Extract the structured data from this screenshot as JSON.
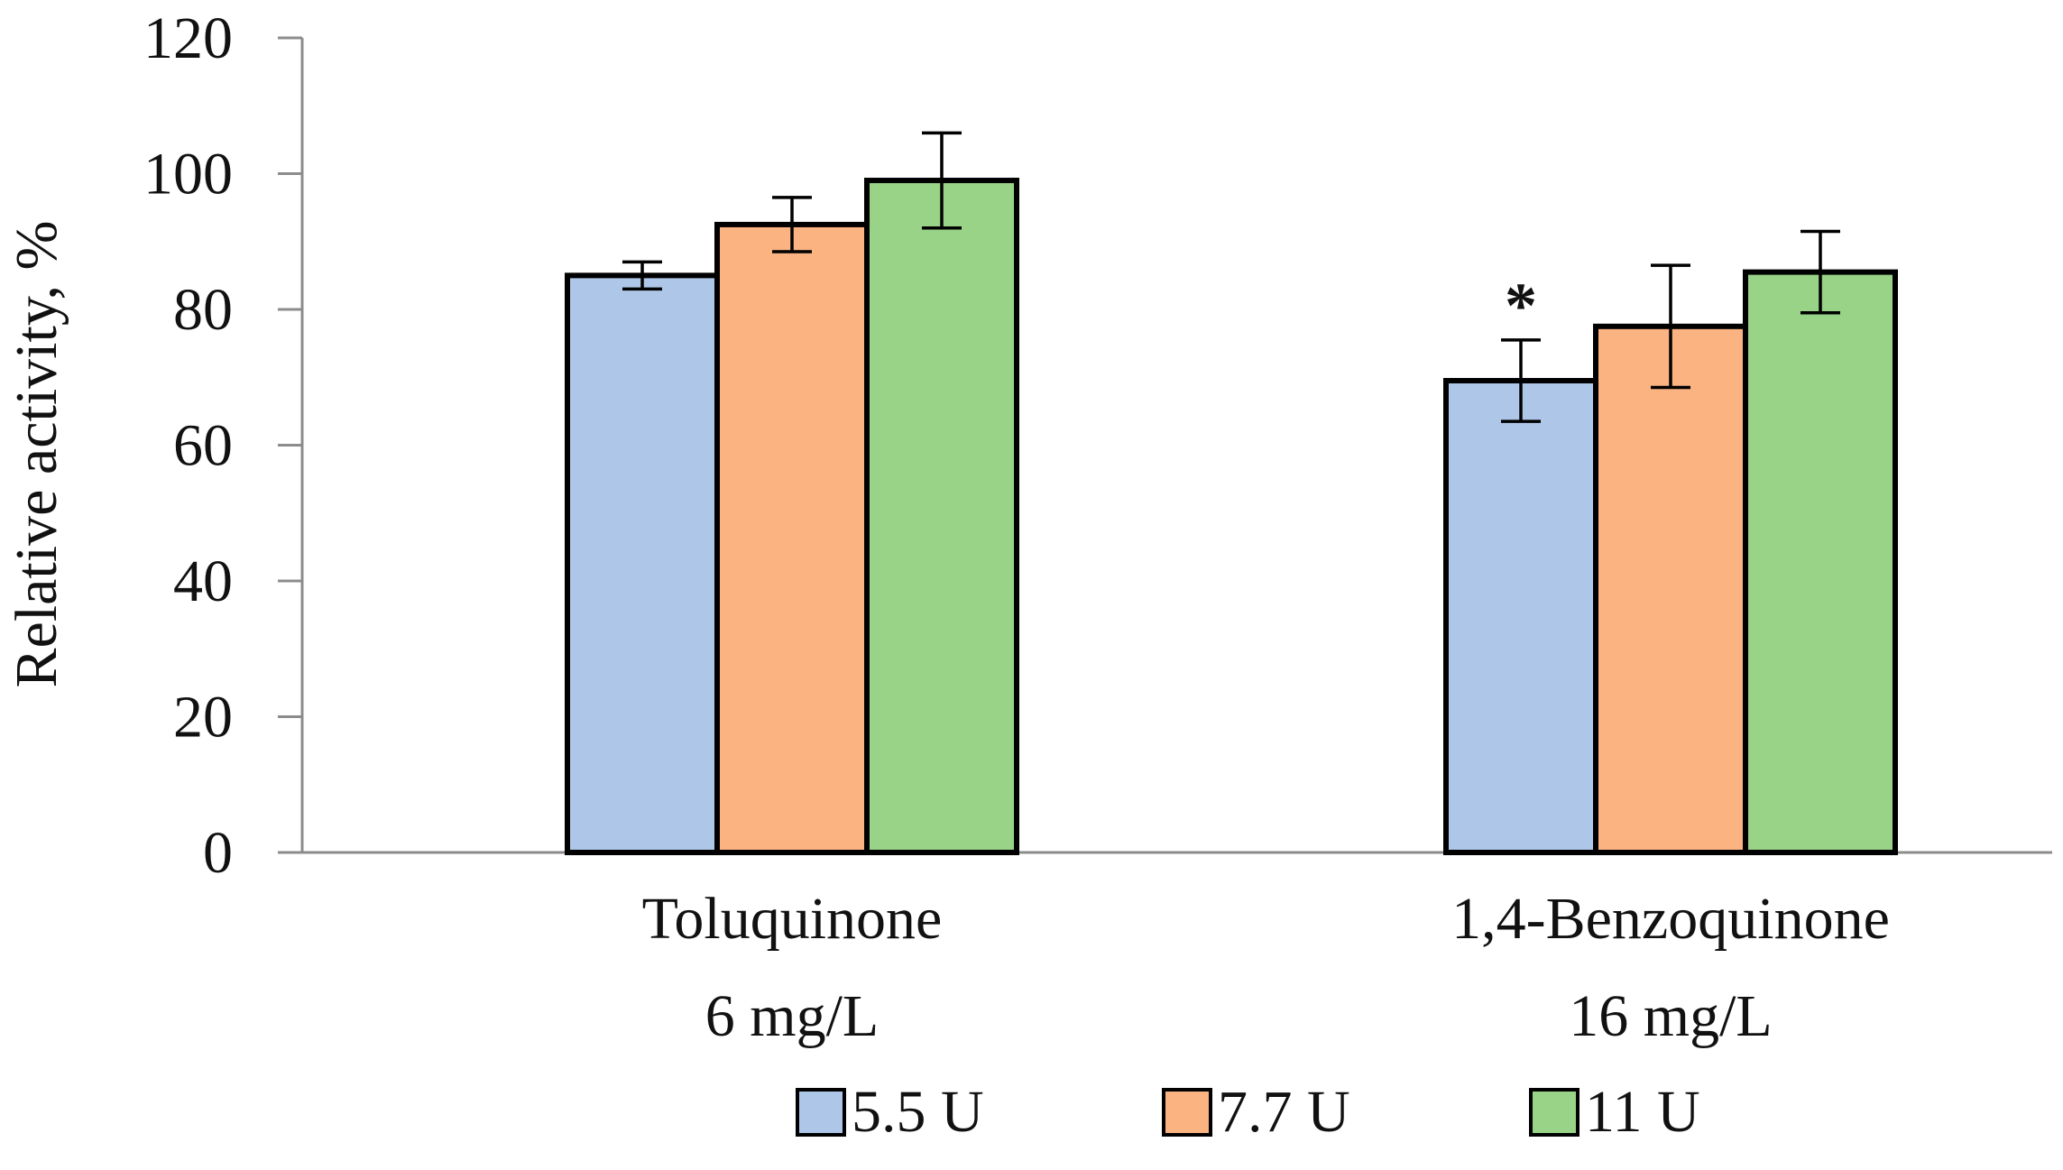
{
  "chart_data": {
    "type": "bar",
    "title": "",
    "xlabel": "",
    "ylabel": "Relative activity, %",
    "ylim": [
      0,
      120
    ],
    "yticks": [
      0,
      20,
      40,
      60,
      80,
      100,
      120
    ],
    "grid": false,
    "legend_position": "bottom",
    "categories": [
      {
        "line1": "Toluquinone",
        "line2": "6 mg/L"
      },
      {
        "line1": "1,4-Benzoquinone",
        "line2": "16 mg/L"
      }
    ],
    "series": [
      {
        "name": "5.5 U",
        "color": "#aec7e8",
        "values": [
          85,
          69.5
        ],
        "errors": [
          2,
          6
        ]
      },
      {
        "name": "7.7 U",
        "color": "#fbb382",
        "values": [
          92.5,
          77.5
        ],
        "errors": [
          4,
          9
        ]
      },
      {
        "name": "11 U",
        "color": "#98d387",
        "values": [
          99,
          85.5
        ],
        "errors": [
          7,
          6
        ]
      }
    ],
    "annotations": [
      {
        "text": "*",
        "category_index": 1,
        "series_index": 0
      }
    ]
  }
}
